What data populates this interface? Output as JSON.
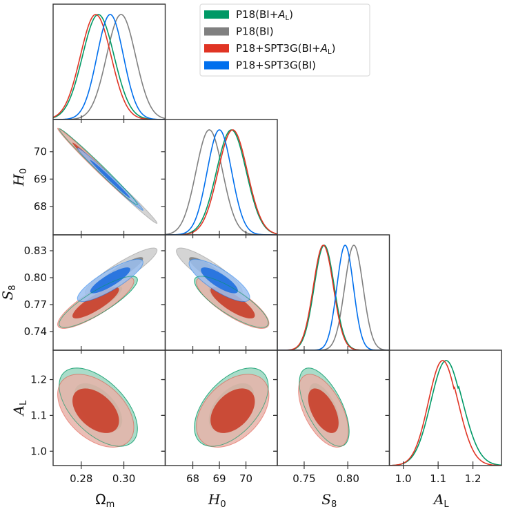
{
  "chart_data": {
    "type": "triangle-corner-plot",
    "title": "",
    "parameters": [
      {
        "key": "Om",
        "label": "Ω",
        "sub": "m",
        "range": [
          0.2668,
          0.3194
        ],
        "ticks": [
          0.28,
          0.3
        ],
        "tick_labels": [
          "0.28",
          "0.30"
        ]
      },
      {
        "key": "H0",
        "label": "H",
        "sub": "0",
        "range": [
          66.96,
          71.18
        ],
        "ticks": [
          68,
          69,
          70
        ],
        "tick_labels": [
          "68",
          "69",
          "70"
        ]
      },
      {
        "key": "S8",
        "label": "S",
        "sub": "8",
        "range": [
          0.7192,
          0.8477
        ],
        "ticks": [
          0.74,
          0.77,
          0.8,
          0.83
        ],
        "tick_labels_y": [
          "0.74",
          "0.77",
          "0.80",
          "0.83"
        ],
        "ticks_x": [
          0.75,
          0.8
        ],
        "tick_labels": [
          "0.75",
          "0.80"
        ]
      },
      {
        "key": "AL",
        "label": "A",
        "sub": "L",
        "range": [
          0.96,
          1.282
        ],
        "ticks": [
          1.0,
          1.1,
          1.2
        ],
        "tick_labels": [
          "1.0",
          "1.1",
          "1.2"
        ]
      }
    ],
    "legend": {
      "placement": "top-right",
      "entries": [
        {
          "label": "P18(BI+",
          "italic": "A",
          "sub": "L",
          "close": ")",
          "color": "#009966"
        },
        {
          "label": "P18(BI)",
          "color": "#808080"
        },
        {
          "label": "P18+SPT3G(BI+",
          "italic": "A",
          "sub": "L",
          "close": ")",
          "color": "#e03424"
        },
        {
          "label": "P18+SPT3G(BI)",
          "color": "#006fed"
        }
      ]
    },
    "series": [
      {
        "name": "P18(BI)",
        "color": "#808080",
        "fill_inner": "#7f7f7f",
        "fill_outer": "#cccccc",
        "mean": {
          "Om": 0.2987,
          "H0": 68.62,
          "S8": 0.807
        },
        "sigma": {
          "Om": 0.0068,
          "H0": 0.5,
          "S8": 0.0105
        },
        "corr": {
          "Om-H0": -0.992,
          "Om-S8": 0.9,
          "H0-S8": -0.87
        }
      },
      {
        "name": "P18(BI+AL)",
        "color": "#009966",
        "fill_inner": "#4fb58e",
        "fill_outer": "#9bd6bf",
        "mean": {
          "Om": 0.288,
          "H0": 69.45,
          "S8": 0.773,
          "AL": 1.123
        },
        "sigma": {
          "Om": 0.0074,
          "H0": 0.56,
          "S8": 0.0115,
          "AL": 0.044
        },
        "corr": {
          "Om-H0": -0.992,
          "Om-S8": 0.86,
          "H0-S8": -0.82,
          "Om-AL": -0.55,
          "H0-AL": 0.52,
          "S8-AL": -0.62
        }
      },
      {
        "name": "P18+SPT3G(BI+AL)",
        "color": "#e03424",
        "fill_inner": "#c93f2b",
        "fill_outer": "#e8b3a9",
        "mean": {
          "Om": 0.2868,
          "H0": 69.5,
          "S8": 0.772,
          "AL": 1.113
        },
        "sigma": {
          "Om": 0.0072,
          "H0": 0.55,
          "S8": 0.0115,
          "AL": 0.041
        },
        "corr": {
          "Om-H0": -0.992,
          "Om-S8": 0.84,
          "H0-S8": -0.8,
          "Om-AL": -0.45,
          "H0-AL": 0.42,
          "S8-AL": -0.55
        }
      },
      {
        "name": "P18+SPT3G(BI)",
        "color": "#006fed",
        "fill_inner": "#1f6fdf",
        "fill_outer": "#9bbff0",
        "mean": {
          "Om": 0.2936,
          "H0": 69.0,
          "S8": 0.797
        },
        "sigma": {
          "Om": 0.0062,
          "H0": 0.46,
          "S8": 0.0095
        },
        "corr": {
          "Om-H0": -0.992,
          "Om-S8": 0.85,
          "H0-S8": -0.8
        }
      }
    ]
  }
}
